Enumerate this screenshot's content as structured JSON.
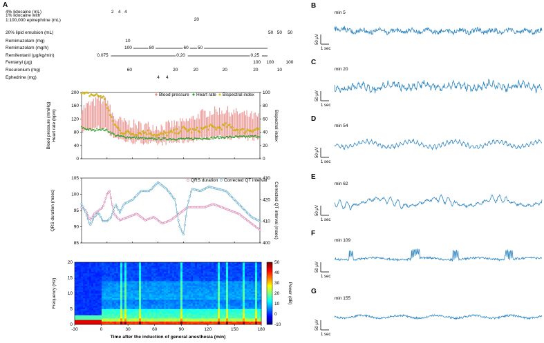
{
  "panels": {
    "A": "A",
    "B": "B",
    "C": "C",
    "D": "D",
    "E": "E",
    "F": "F",
    "G": "G"
  },
  "drugs": [
    {
      "name": "4% lidocaine (mL)",
      "entries": [
        {
          "t": 2,
          "v": "2"
        },
        {
          "t": 10,
          "v": "4"
        },
        {
          "t": 17,
          "v": "4"
        }
      ]
    },
    {
      "name": "1% lidocaine with\n1:100,000 epinephrine (mL)",
      "entries": [
        {
          "t": 96,
          "v": "20"
        }
      ]
    },
    {
      "name": "20% lipid emulsion (mL)",
      "entries": [
        {
          "t": 180,
          "v": "50"
        },
        {
          "t": 190,
          "v": "50"
        },
        {
          "t": 202,
          "v": "50"
        }
      ]
    },
    {
      "name": "Remimazolam (mg)",
      "entries": [
        {
          "t": 18,
          "v": "10"
        }
      ]
    },
    {
      "name": "Remimazolam (mg/h)",
      "infusion": [
        {
          "t": 17,
          "v": "100"
        },
        {
          "t": 45,
          "v": "80"
        },
        {
          "t": 84,
          "v": "60"
        },
        {
          "t": 100,
          "v": "50"
        }
      ]
    },
    {
      "name": "Remifentanil (μg/kg/min)",
      "infusion": [
        {
          "t": -14,
          "v": "0.075"
        },
        {
          "t": 76,
          "v": "0.20"
        },
        {
          "t": 160,
          "v": "0.25"
        }
      ]
    },
    {
      "name": "Fentanyl (μg)",
      "entries": [
        {
          "t": 163,
          "v": "100"
        },
        {
          "t": 178,
          "v": "100"
        },
        {
          "t": 200,
          "v": "100"
        }
      ]
    },
    {
      "name": "Rocuronium (mg)",
      "entries": [
        {
          "t": 20,
          "v": "60"
        },
        {
          "t": 72,
          "v": "20"
        },
        {
          "t": 95,
          "v": "20"
        },
        {
          "t": 128,
          "v": "20"
        },
        {
          "t": 163,
          "v": "20"
        },
        {
          "t": 190,
          "v": "10"
        }
      ]
    },
    {
      "name": "Ephedrine (mg)",
      "entries": [
        {
          "t": 54,
          "v": "4"
        },
        {
          "t": 64,
          "v": "4"
        }
      ]
    }
  ],
  "chart_data": [
    {
      "type": "line",
      "panel": "A-vitals",
      "legend": [
        "Blood pressure",
        "Heart rate",
        "Bispectral index"
      ],
      "ylabel_left": "Blood pressure (mmHg)\nHeart rate (bpm)",
      "ylabel_right": "Bispectral index",
      "ylim_left": [
        0,
        200
      ],
      "ylim_right": [
        0,
        100
      ],
      "yticks_left": [
        "0",
        "40",
        "80",
        "120",
        "160",
        "200"
      ],
      "yticks_right": [
        "0",
        "20",
        "40",
        "60",
        "80",
        "100"
      ],
      "xlim": [
        -30,
        180
      ],
      "series": [
        {
          "name": "Blood pressure",
          "systolic": [
            [
              -30,
              150
            ],
            [
              -25,
              160
            ],
            [
              -20,
              165
            ],
            [
              -15,
              170
            ],
            [
              -10,
              180
            ],
            [
              -5,
              175
            ],
            [
              0,
              180
            ],
            [
              5,
              140
            ],
            [
              10,
              120
            ],
            [
              15,
              115
            ],
            [
              20,
              110
            ],
            [
              30,
              105
            ],
            [
              40,
              100
            ],
            [
              50,
              100
            ],
            [
              60,
              95
            ],
            [
              70,
              100
            ],
            [
              80,
              105
            ],
            [
              90,
              110
            ],
            [
              100,
              120
            ],
            [
              110,
              135
            ],
            [
              120,
              140
            ],
            [
              130,
              145
            ],
            [
              140,
              145
            ],
            [
              150,
              140
            ],
            [
              160,
              135
            ],
            [
              170,
              130
            ],
            [
              180,
              125
            ]
          ],
          "diastolic": [
            [
              -30,
              80
            ],
            [
              -25,
              85
            ],
            [
              -20,
              88
            ],
            [
              -15,
              90
            ],
            [
              -10,
              95
            ],
            [
              -5,
              90
            ],
            [
              0,
              90
            ],
            [
              5,
              70
            ],
            [
              10,
              65
            ],
            [
              15,
              60
            ],
            [
              20,
              55
            ],
            [
              30,
              50
            ],
            [
              40,
              50
            ],
            [
              50,
              48
            ],
            [
              60,
              45
            ],
            [
              70,
              48
            ],
            [
              80,
              50
            ],
            [
              90,
              52
            ],
            [
              100,
              55
            ],
            [
              110,
              60
            ],
            [
              120,
              62
            ],
            [
              130,
              65
            ],
            [
              140,
              65
            ],
            [
              150,
              62
            ],
            [
              160,
              60
            ],
            [
              170,
              60
            ],
            [
              180,
              58
            ]
          ]
        },
        {
          "name": "Heart rate",
          "values": [
            [
              -30,
              95
            ],
            [
              -25,
              90
            ],
            [
              -20,
              88
            ],
            [
              -15,
              85
            ],
            [
              -10,
              90
            ],
            [
              -5,
              88
            ],
            [
              0,
              85
            ],
            [
              5,
              78
            ],
            [
              10,
              70
            ],
            [
              15,
              68
            ],
            [
              20,
              66
            ],
            [
              30,
              64
            ],
            [
              40,
              62
            ],
            [
              50,
              60
            ],
            [
              60,
              60
            ],
            [
              70,
              60
            ],
            [
              80,
              60
            ],
            [
              90,
              60
            ],
            [
              100,
              60
            ],
            [
              110,
              62
            ],
            [
              120,
              62
            ],
            [
              130,
              64
            ],
            [
              140,
              65
            ],
            [
              150,
              66
            ],
            [
              160,
              66
            ],
            [
              170,
              67
            ],
            [
              180,
              68
            ]
          ]
        },
        {
          "name": "Bispectral index",
          "values": [
            [
              -30,
              98
            ],
            [
              -25,
              97
            ],
            [
              -20,
              97
            ],
            [
              -15,
              96
            ],
            [
              -10,
              95
            ],
            [
              -5,
              94
            ],
            [
              0,
              80
            ],
            [
              5,
              60
            ],
            [
              10,
              50
            ],
            [
              15,
              42
            ],
            [
              20,
              40
            ],
            [
              30,
              38
            ],
            [
              40,
              40
            ],
            [
              50,
              40
            ],
            [
              60,
              35
            ],
            [
              70,
              38
            ],
            [
              80,
              40
            ],
            [
              90,
              45
            ],
            [
              100,
              42
            ],
            [
              110,
              44
            ],
            [
              120,
              48
            ],
            [
              130,
              46
            ],
            [
              140,
              50
            ],
            [
              150,
              45
            ],
            [
              160,
              42
            ],
            [
              170,
              44
            ],
            [
              180,
              45
            ]
          ]
        }
      ]
    },
    {
      "type": "line",
      "panel": "A-ecg",
      "legend": [
        "QRS duration",
        "Corrected QT interval"
      ],
      "ylabel_left": "QRS duration (msec)",
      "ylabel_right": "Corrected QT interval (msec)",
      "ylim_left": [
        85,
        105
      ],
      "ylim_right": [
        400,
        430
      ],
      "yticks_left": [
        "85",
        "90",
        "95",
        "100",
        "105"
      ],
      "yticks_right": [
        "400",
        "410",
        "420",
        "430"
      ],
      "xlim": [
        -30,
        180
      ],
      "series": [
        {
          "name": "QRS duration",
          "values": [
            [
              -30,
              96
            ],
            [
              -25,
              95
            ],
            [
              -20,
              92
            ],
            [
              -15,
              94
            ],
            [
              -10,
              95
            ],
            [
              -5,
              96
            ],
            [
              0,
              100
            ],
            [
              3,
              101
            ],
            [
              8,
              94
            ],
            [
              15,
              92
            ],
            [
              25,
              93
            ],
            [
              35,
              94
            ],
            [
              45,
              92
            ],
            [
              55,
              93
            ],
            [
              65,
              91
            ],
            [
              75,
              92
            ],
            [
              85,
              94
            ],
            [
              95,
              96
            ],
            [
              105,
              96
            ],
            [
              115,
              96
            ],
            [
              125,
              97
            ],
            [
              135,
              96
            ],
            [
              145,
              95
            ],
            [
              155,
              94
            ],
            [
              165,
              92
            ],
            [
              175,
              90
            ],
            [
              180,
              89
            ]
          ]
        },
        {
          "name": "Corrected QT interval",
          "values": [
            [
              -30,
              418
            ],
            [
              -25,
              414
            ],
            [
              -20,
              408
            ],
            [
              -15,
              412
            ],
            [
              -10,
              414
            ],
            [
              -5,
              410
            ],
            [
              0,
              410
            ],
            [
              5,
              412
            ],
            [
              10,
              418
            ],
            [
              15,
              414
            ],
            [
              20,
              418
            ],
            [
              30,
              420
            ],
            [
              40,
              424
            ],
            [
              50,
              424
            ],
            [
              60,
              428
            ],
            [
              70,
              425
            ],
            [
              80,
              420
            ],
            [
              85,
              408
            ],
            [
              90,
              404
            ],
            [
              95,
              418
            ],
            [
              100,
              425
            ],
            [
              110,
              424
            ],
            [
              120,
              426
            ],
            [
              130,
              425
            ],
            [
              140,
              424
            ],
            [
              150,
              420
            ],
            [
              160,
              416
            ],
            [
              170,
              412
            ],
            [
              180,
              410
            ]
          ]
        }
      ]
    },
    {
      "type": "heatmap",
      "panel": "A-spectrogram",
      "ylabel": "Frequency (Hz)",
      "xlabel": "Time after the induction of general anesthesia (min)",
      "colorbar_label": "Power (dB)",
      "ylim": [
        0,
        20
      ],
      "yticks": [
        "0",
        "5",
        "10",
        "15",
        "20"
      ],
      "xticks": [
        "-30",
        "0",
        "30",
        "60",
        "90",
        "120",
        "150",
        "180"
      ],
      "cbar_ticks": [
        "-10",
        "0",
        "10",
        "20",
        "30",
        "40",
        "50"
      ],
      "xlim": [
        -30,
        180
      ],
      "clim": [
        -10,
        50
      ]
    },
    {
      "type": "line",
      "panel": "EEG-traces",
      "scale_y": "50 μV",
      "scale_x": "1 sec",
      "traces": [
        {
          "label": "min 5"
        },
        {
          "label": "min 20"
        },
        {
          "label": "min 54"
        },
        {
          "label": "min 62"
        },
        {
          "label": "min 109"
        },
        {
          "label": "min 155"
        }
      ]
    }
  ],
  "colors": {
    "bp": "#e8827e",
    "hr": "#2ca02c",
    "bis": "#e0c020",
    "qrs": "#5fa8c8",
    "qtc": "#d77fb0",
    "eeg": "#2e86c1"
  }
}
